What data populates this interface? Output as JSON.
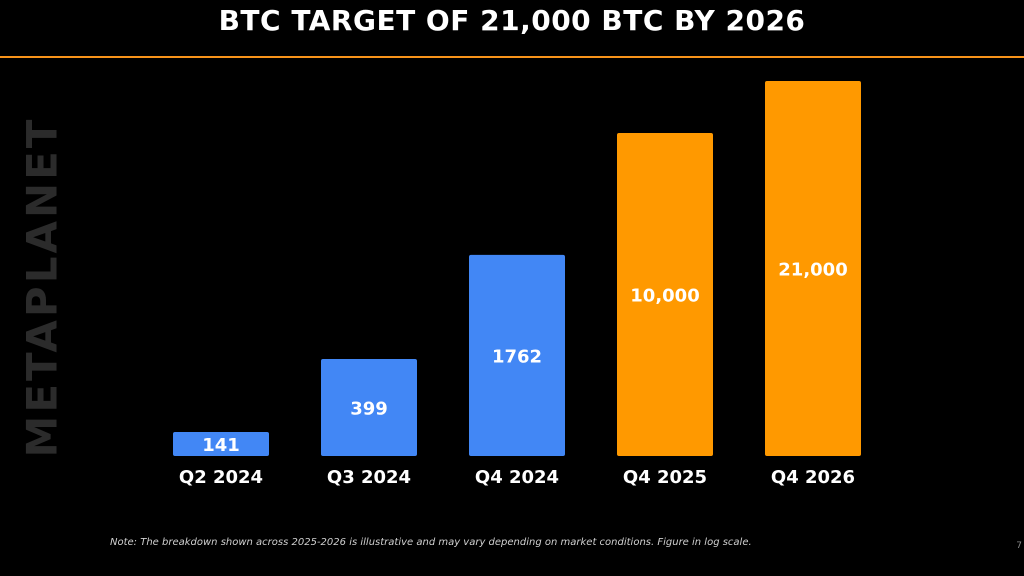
{
  "slide": {
    "title": "BTC TARGET OF 21,000 BTC BY 2026",
    "watermark": "METAPLANET",
    "note": "Note: The breakdown shown across 2025-2026 is illustrative and may vary depending on market conditions.  Figure in log scale.",
    "page_number": "7"
  },
  "colors": {
    "actual": "#4287f5",
    "target": "#ff9900",
    "rule": "#f7931a"
  },
  "chart_data": {
    "type": "bar",
    "scale": "log",
    "categories": [
      "Q2 2024",
      "Q3 2024",
      "Q4 2024",
      "Q4 2025",
      "Q4 2026"
    ],
    "values": [
      141,
      399,
      1762,
      10000,
      21000
    ],
    "value_labels": [
      "141",
      "399",
      "1762",
      "10,000",
      "21,000"
    ],
    "bar_colors": [
      "#4287f5",
      "#4287f5",
      "#4287f5",
      "#ff9900",
      "#ff9900"
    ],
    "grid": false,
    "legend": "none"
  }
}
